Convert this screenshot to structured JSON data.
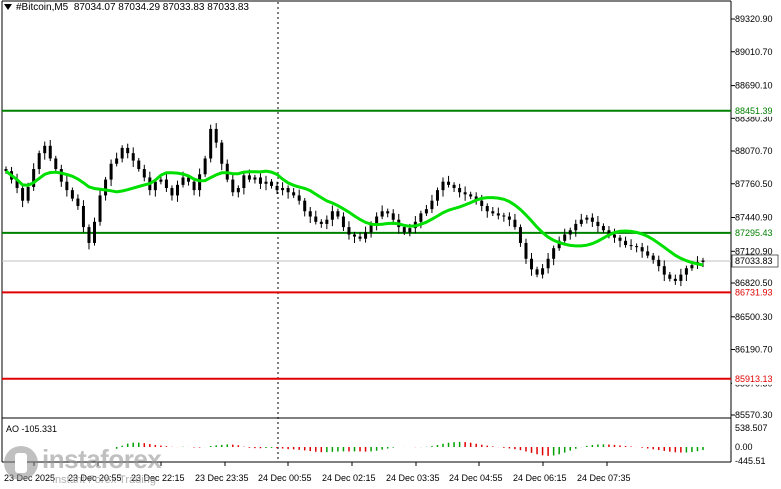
{
  "header": {
    "symbol": "#Bitcoin,M5",
    "ohlc": "87034.07 87034.29 87033.83 87033.83"
  },
  "price_axis": {
    "labels": [
      "89320.90",
      "89010.70",
      "88690.10",
      "88380.30",
      "88070.70",
      "87760.50",
      "87440.90",
      "87120.90",
      "86820.50",
      "86500.30",
      "86190.70",
      "85870.50",
      "85570.30"
    ]
  },
  "levels": [
    {
      "price": 88451.39,
      "label": "88451.39",
      "color": "#008000"
    },
    {
      "price": 87295.43,
      "label": "87295.43",
      "color": "#008000"
    },
    {
      "price": 86731.93,
      "label": "86731.93",
      "color": "#e00000"
    },
    {
      "price": 85913.13,
      "label": "85913.13",
      "color": "#e00000"
    }
  ],
  "current_price": {
    "price": 87033.83,
    "label": "87033.83"
  },
  "time_axis": {
    "labels": [
      "23 Dec 2025",
      "23 Dec 20:55",
      "23 Dec 22:15",
      "23 Dec 23:35",
      "24 Dec 00:55",
      "24 Dec 02:15",
      "24 Dec 03:35",
      "24 Dec 04:55",
      "24 Dec 06:15",
      "24 Dec 07:35"
    ]
  },
  "oscillator": {
    "name": "AO -105.331",
    "axis_labels": [
      "538.507",
      "0.00",
      "-445.51"
    ]
  },
  "watermark": {
    "brand": "instaforex",
    "tagline": "Instant Forex Trading"
  },
  "colors": {
    "ma": "#00e000",
    "up": "#00a000",
    "down": "#e00000"
  },
  "chart_data": {
    "type": "candlestick",
    "timeframe": "M5",
    "ylim": [
      85570.3,
      89320.9
    ],
    "close": [
      87880,
      87800,
      87720,
      87600,
      87730,
      87900,
      88050,
      88120,
      88000,
      87900,
      87780,
      87700,
      87620,
      87550,
      87350,
      87200,
      87400,
      87650,
      87800,
      87950,
      88000,
      88100,
      88050,
      87980,
      87900,
      87820,
      87700,
      87780,
      87800,
      87720,
      87650,
      87750,
      87820,
      87780,
      87700,
      87850,
      88000,
      88280,
      88150,
      87950,
      87800,
      87680,
      87720,
      87840,
      87800,
      87820,
      87760,
      87780,
      87740,
      87700,
      87720,
      87680,
      87650,
      87600,
      87500,
      87450,
      87400,
      87380,
      87420,
      87500,
      87450,
      87350,
      87280,
      87260,
      87240,
      87300,
      87380,
      87450,
      87500,
      87480,
      87420,
      87350,
      87300,
      87340,
      87400,
      87480,
      87520,
      87600,
      87700,
      87780,
      87750,
      87720,
      87680,
      87660,
      87640,
      87600,
      87550,
      87500,
      87480,
      87460,
      87450,
      87420,
      87350,
      87200,
      87050,
      86950,
      86900,
      86960,
      87050,
      87150,
      87220,
      87280,
      87320,
      87380,
      87420,
      87440,
      87400,
      87360,
      87320,
      87280,
      87250,
      87220,
      87180,
      87170,
      87160,
      87120,
      87080,
      87040,
      86980,
      86900,
      86860,
      86840,
      86900,
      86960,
      86990,
      87020,
      87034
    ]
  }
}
